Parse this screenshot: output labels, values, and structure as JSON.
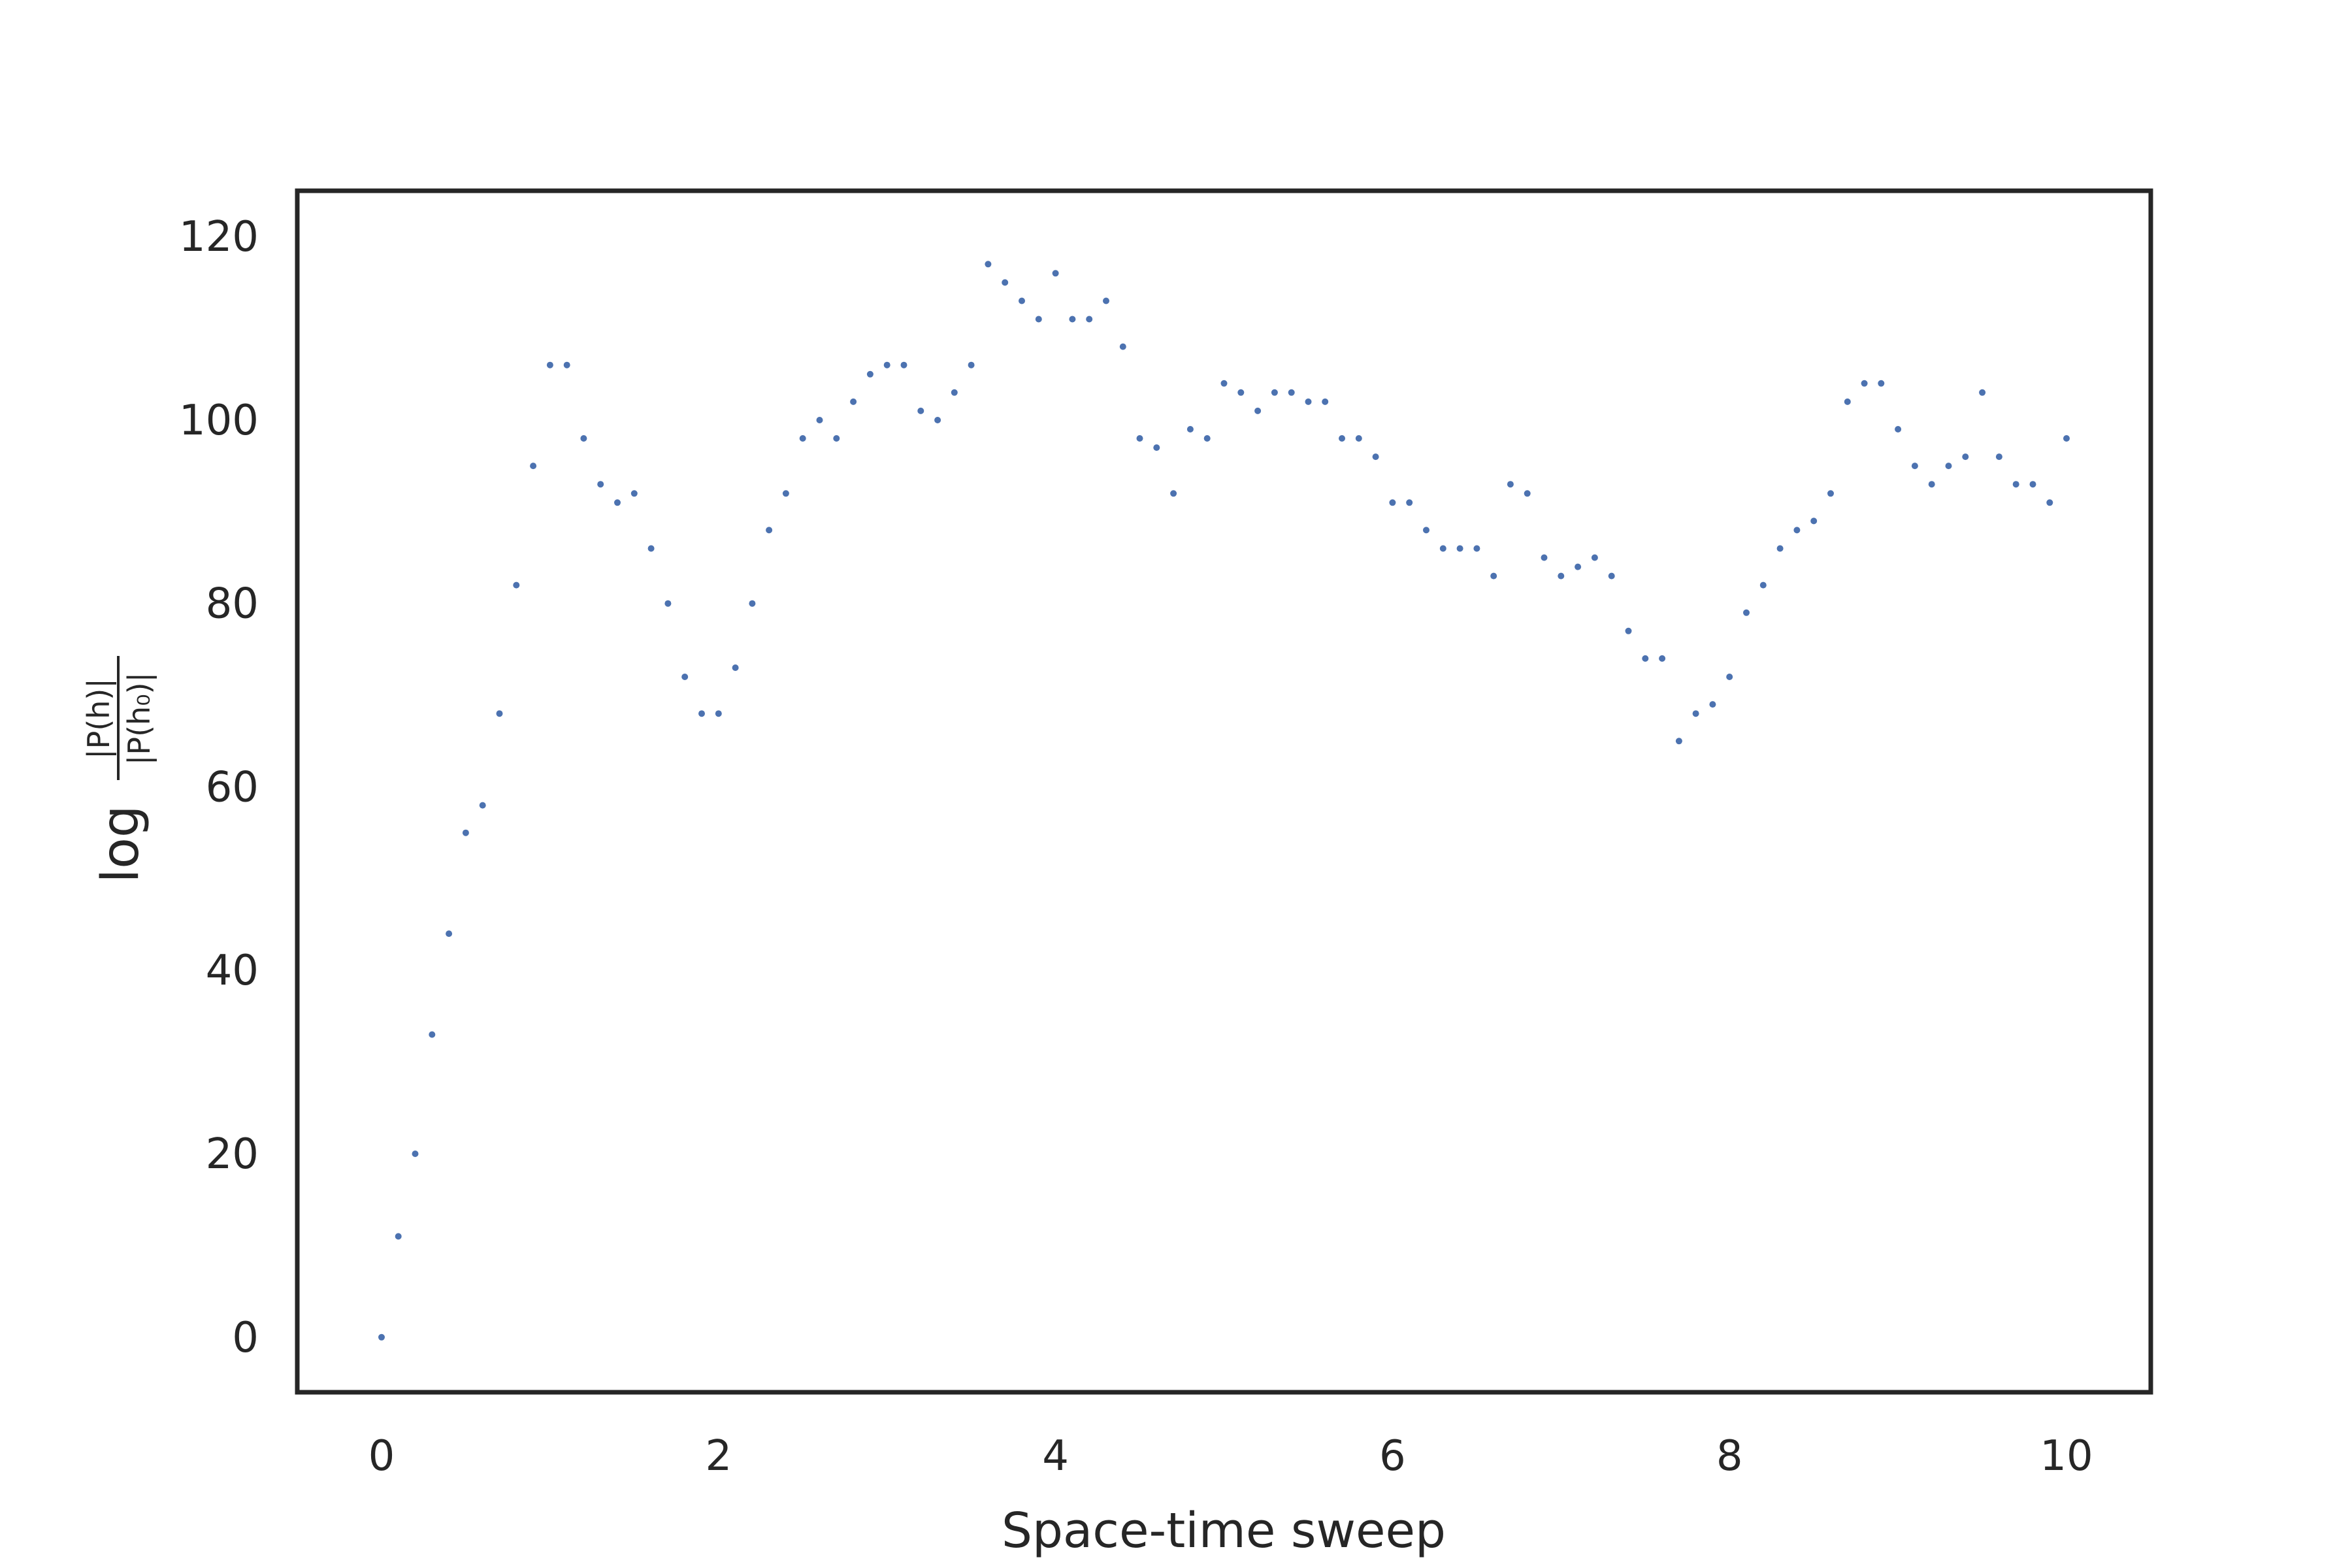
{
  "chart_data": {
    "type": "scatter",
    "xlabel": "Space-time sweep",
    "ylabel": {
      "prefix": "log",
      "numerator": "|P(h)|",
      "denominator": "|P(h₀)|"
    },
    "xlim": [
      -0.5,
      10.5
    ],
    "ylim": [
      -6,
      125
    ],
    "xticks": [
      0,
      2,
      4,
      6,
      8,
      10
    ],
    "yticks": [
      0,
      20,
      40,
      60,
      80,
      100,
      120
    ],
    "grid": false,
    "legend": "none",
    "marker_color": "#4c72b0",
    "frame_color": "#262626",
    "series": [
      {
        "x": [
          0,
          0.1,
          0.2,
          0.3,
          0.4,
          0.5,
          0.6,
          0.7,
          0.8,
          0.9,
          1.0,
          1.1,
          1.2,
          1.3,
          1.4,
          1.5,
          1.6,
          1.7,
          1.8,
          1.9,
          2.0,
          2.1,
          2.2,
          2.3,
          2.4,
          2.5,
          2.6,
          2.7,
          2.8,
          2.9,
          3.0,
          3.1,
          3.2,
          3.3,
          3.4,
          3.5,
          3.6,
          3.7,
          3.8,
          3.9,
          4.0,
          4.1,
          4.2,
          4.3,
          4.4,
          4.5,
          4.6,
          4.7,
          4.8,
          4.9,
          5.0,
          5.1,
          5.2,
          5.3,
          5.4,
          5.5,
          5.6,
          5.7,
          5.8,
          5.9,
          6.0,
          6.1,
          6.2,
          6.3,
          6.4,
          6.5,
          6.6,
          6.7,
          6.8,
          6.9,
          7.0,
          7.1,
          7.2,
          7.3,
          7.4,
          7.5,
          7.6,
          7.7,
          7.8,
          7.9,
          8.0,
          8.1,
          8.2,
          8.3,
          8.4,
          8.5,
          8.6,
          8.7,
          8.8,
          8.9,
          9.0,
          9.1,
          9.2,
          9.3,
          9.4,
          9.5,
          9.6,
          9.7,
          9.8,
          9.9,
          10.0
        ],
        "y": [
          0,
          11,
          20,
          33,
          44,
          55,
          58,
          68,
          82,
          95,
          106,
          106,
          98,
          93,
          91,
          92,
          86,
          80,
          72,
          68,
          68,
          73,
          80,
          88,
          92,
          98,
          100,
          98,
          102,
          105,
          106,
          106,
          101,
          100,
          103,
          106,
          117,
          115,
          113,
          111,
          116,
          111,
          111,
          113,
          108,
          98,
          97,
          92,
          99,
          98,
          104,
          103,
          101,
          103,
          103,
          102,
          102,
          98,
          98,
          96,
          91,
          91,
          88,
          86,
          86,
          86,
          83,
          93,
          92,
          85,
          83,
          84,
          85,
          83,
          77,
          74,
          74,
          65,
          68,
          69,
          72,
          79,
          82,
          86,
          88,
          89,
          92,
          102,
          104,
          104,
          99,
          95,
          93,
          95,
          96,
          103,
          96,
          93,
          93,
          91,
          98
        ]
      }
    ]
  }
}
